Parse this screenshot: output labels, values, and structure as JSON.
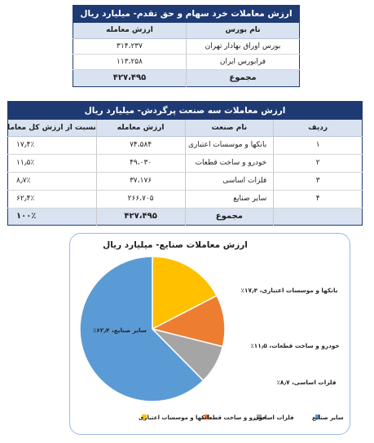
{
  "table1": {
    "title": "ارزش معاملات خرد سهام و حق تقدم- میلیارد ریال",
    "headers": {
      "name": "نام بورس",
      "value": "ارزش معامله"
    },
    "rows": [
      {
        "name": "بورس اوراق بهادار تهران",
        "value": "۳۱۴،۲۳۷"
      },
      {
        "name": "فرابورس ایران",
        "value": "۱۱۳،۲۵۸"
      }
    ],
    "total": {
      "label": "مجموع",
      "value": "۴۲۷،۴۹۵"
    }
  },
  "table2": {
    "title": "ارزش معاملات سه صنعت پرگردش- میلیارد ریال",
    "headers": {
      "index": "ردیف",
      "industry": "نام صنعت",
      "value": "ارزش معامله",
      "percent": "نسبت از ارزش کل معاملات"
    },
    "rows": [
      {
        "index": "۱",
        "industry": "بانکها و موسسات اعتباری",
        "value": "۷۴،۵۸۴",
        "percent": "۱۷٫۴٪"
      },
      {
        "index": "۲",
        "industry": "خودرو و ساخت قطعات",
        "value": "۴۹،۰۳۰",
        "percent": "۱۱٫۵٪"
      },
      {
        "index": "۳",
        "industry": "فلزات اساسی",
        "value": "۳۷،۱۷۶",
        "percent": "۸٫۷٪"
      },
      {
        "index": "۴",
        "industry": "سایر صنایع",
        "value": "۲۶۶،۷۰۵",
        "percent": "۶۲٫۴٪"
      }
    ],
    "total": {
      "label": "مجموع",
      "value": "۴۲۷،۴۹۵",
      "percent": "۱۰۰٪"
    }
  },
  "chart_data": {
    "type": "pie",
    "title": "ارزش معاملات صنایع- میلیارد ریال",
    "slices": [
      {
        "name": "بانکها و موسسات اعتباری",
        "value": 17.4,
        "label": "بانکها و موسسات اعتباری، ۱۷٫۴٪",
        "color": "#ffc000"
      },
      {
        "name": "خودرو و ساخت قطعات",
        "value": 11.5,
        "label": "خودرو و ساخت قطعات، ۱۱٫۵٪",
        "color": "#ed7d31"
      },
      {
        "name": "فلزات اساسی",
        "value": 8.7,
        "label": "فلزات اساسی، ۸٫۷٪",
        "color": "#a5a5a5"
      },
      {
        "name": "سایر صنایع",
        "value": 62.4,
        "label": "سایر صنایع، ۶۲٫۴٪",
        "color": "#5b9bd5"
      }
    ],
    "legend": [
      "سایر صنایع",
      "فلزات اساسی",
      "خودرو و ساخت قطعات",
      "بانکها و موسسات اعتباری"
    ],
    "legend_position": "bottom"
  }
}
